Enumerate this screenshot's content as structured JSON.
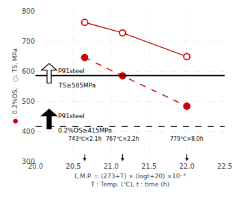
{
  "chart_data": {
    "type": "line",
    "xlabel": [
      "L.M.P. = (273+T) × (logt+20) ×10⁻³",
      "T : Temp. (℃), t : time (h)"
    ],
    "ylabel": "●: 0.2%OS,   ○: TS, MPa",
    "x": [
      20.65,
      21.15,
      22.0
    ],
    "series": [
      {
        "values": [
          762,
          727,
          648
        ],
        "color": "#cc0000",
        "marker": "open",
        "line_style": "solid"
      },
      {
        "values": [
          645,
          584,
          483
        ],
        "color": "#cc0000",
        "marker": "filled",
        "line_style": "dashed"
      }
    ],
    "xlim": [
      20.0,
      22.5
    ],
    "ylim": [
      300,
      800
    ],
    "xticks": [
      {
        "value": 20.0,
        "label": "20.0"
      },
      20.5,
      {
        "value": 21.0,
        "label": "21.0"
      },
      21.5,
      {
        "value": 22.0,
        "label": "22.0"
      },
      22.5
    ],
    "yticks": [
      300,
      400,
      500,
      600,
      700,
      800
    ],
    "grid": true,
    "conditions": [
      {
        "text": "743℃×2.1h",
        "x": 20.65,
        "y": 360
      },
      {
        "text": "767℃×2.2h",
        "x": 21.15,
        "y": 360
      },
      {
        "text": "779℃×8.0h",
        "x": 22.0,
        "y": 360
      }
    ],
    "reference_lines": [
      {
        "y": 585,
        "line_style": "solid",
        "color": "black",
        "label": {
          "text": "TS≥585MPa",
          "x": 20.28,
          "y": 568
        },
        "note": {
          "text": "P91steel",
          "x": 20.28,
          "y": 600
        },
        "arrow": {
          "x": 20.18,
          "y": 560,
          "height": 65,
          "color": "white"
        }
      },
      {
        "y": 415,
        "line_style": "dashed",
        "color": "black",
        "label": {
          "text": "0.2%OS≥415MPa",
          "x": 20.28,
          "y": 418
        },
        "note": {
          "text": "P91steel",
          "x": 20.28,
          "y": 450
        },
        "arrow": {
          "x": 20.18,
          "y": 408,
          "height": 65,
          "color": "black"
        }
      }
    ]
  }
}
